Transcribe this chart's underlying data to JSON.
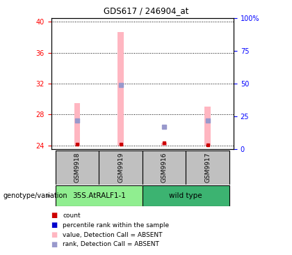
{
  "title": "GDS617 / 246904_at",
  "samples": [
    "GSM9918",
    "GSM9919",
    "GSM9916",
    "GSM9917"
  ],
  "bar_values": [
    29.5,
    38.7,
    24.3,
    29.0
  ],
  "rank_pct": [
    22,
    49,
    17,
    22
  ],
  "count_values": [
    24.1,
    24.15,
    24.35,
    24.05
  ],
  "ylim_left": [
    23.5,
    40.5
  ],
  "ylim_right": [
    0,
    100
  ],
  "yticks_left": [
    24,
    28,
    32,
    36,
    40
  ],
  "yticks_right": [
    0,
    25,
    50,
    75,
    100
  ],
  "bar_color": "#FFB6C1",
  "rank_color": "#9999CC",
  "count_color": "#CC0000",
  "plot_bg_color": "#ffffff",
  "label_area_color": "#C0C0C0",
  "group_label_1": "35S.AtRALF1-1",
  "group_label_2": "wild type",
  "group_color_1": "#90EE90",
  "group_color_2": "#3CB371",
  "genotype_label": "genotype/variation",
  "legend_colors": [
    "#CC0000",
    "#0000CC",
    "#FFB6C1",
    "#9999CC"
  ],
  "legend_labels": [
    "count",
    "percentile rank within the sample",
    "value, Detection Call = ABSENT",
    "rank, Detection Call = ABSENT"
  ]
}
